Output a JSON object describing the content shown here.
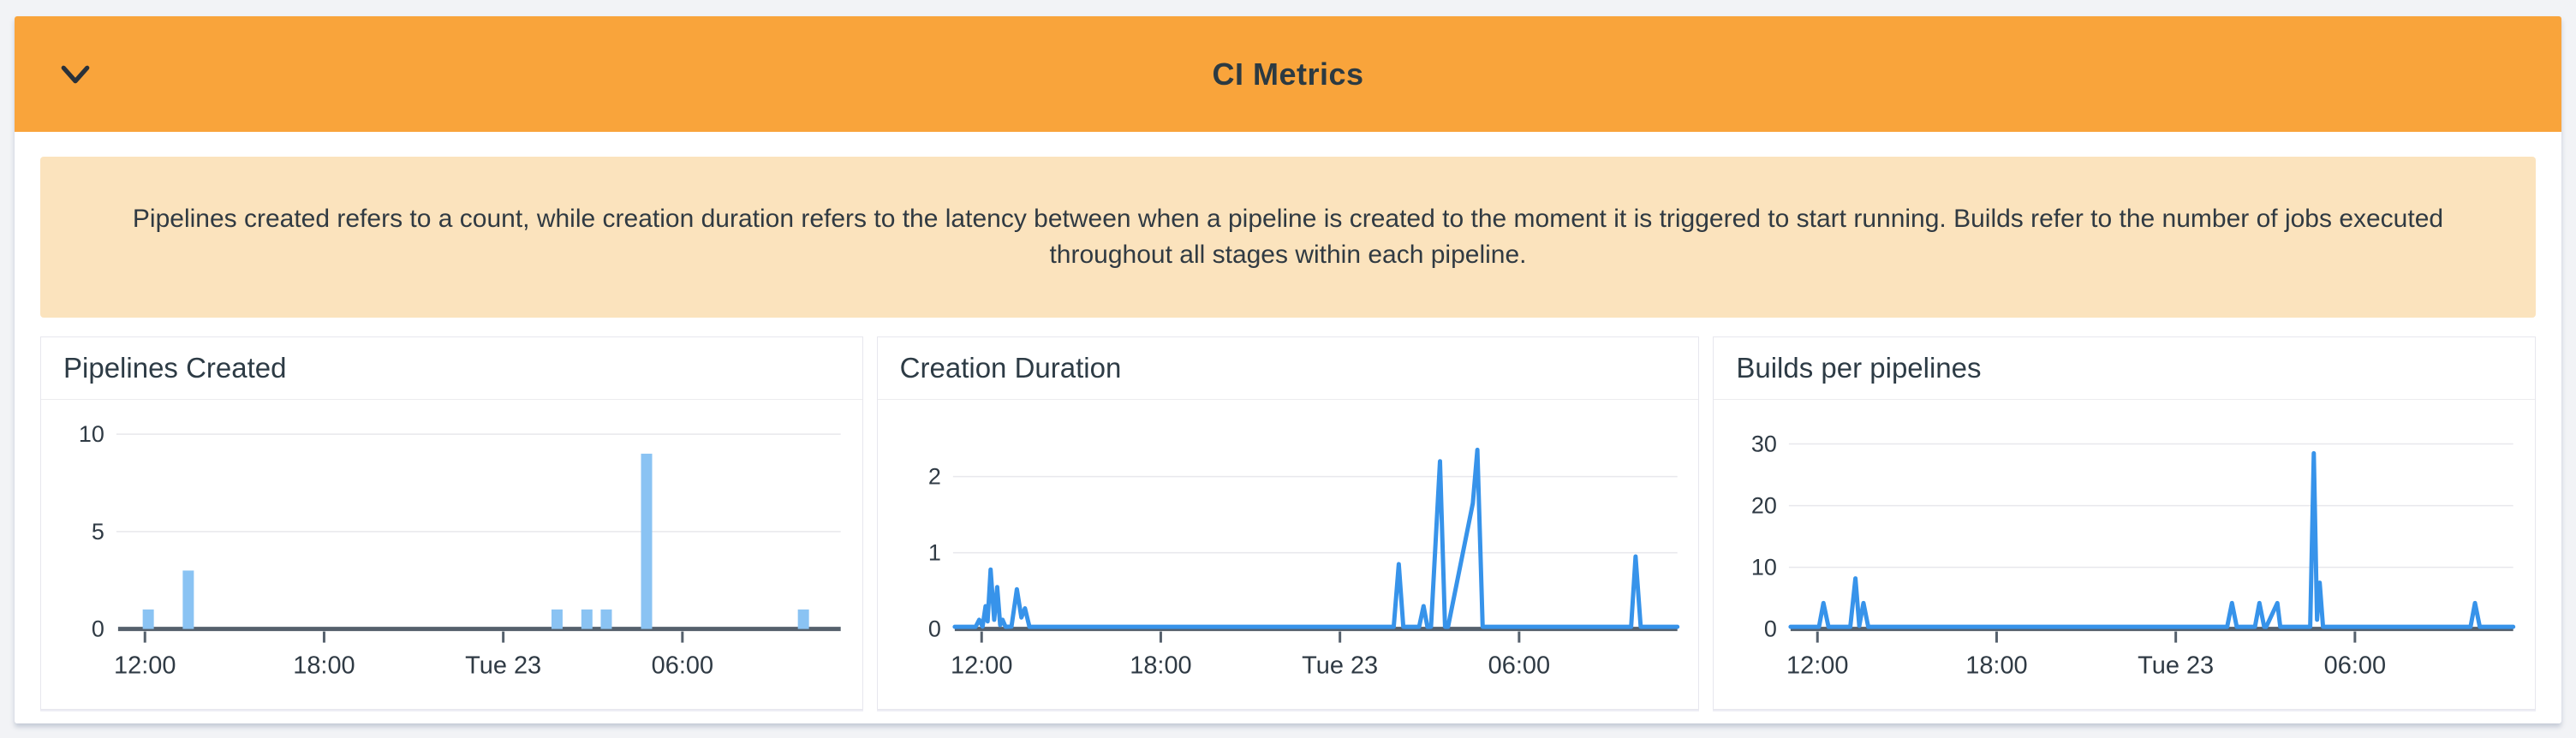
{
  "widget": {
    "title": "CI Metrics",
    "collapse_icon": "chevron-down"
  },
  "banner": {
    "text": "Pipelines created refers to a count, while creation duration refers to the latency between when a pipeline is created to the moment it is triggered to start running. Builds refer to the number of jobs executed throughout all stages within each pipeline."
  },
  "style": {
    "header_bg": "#F9A43B",
    "banner_bg": "#FBE3BD",
    "bar_color": "#8AC3F3",
    "line_color": "#3793EA",
    "axis_color": "#55606C",
    "grid_color": "#E8E8EC",
    "label_color": "#2F3A44",
    "title_color": "#2D3B45"
  },
  "chart_data": [
    {
      "id": "pipelines-created",
      "type": "bar",
      "title": "Pipelines Created",
      "x_unit": "hours relative to Tue 23 00:00",
      "xlim": [
        -12.9,
        11.3
      ],
      "ylim": [
        0,
        10.45
      ],
      "grid": true,
      "x_ticks": [
        {
          "h": -12,
          "label": "12:00"
        },
        {
          "h": -6,
          "label": "18:00"
        },
        {
          "h": 0,
          "label": "Tue 23"
        },
        {
          "h": 6,
          "label": "06:00"
        }
      ],
      "y_ticks": [
        0,
        5,
        10
      ],
      "bar_color": "#8AC3F3",
      "bars": [
        [
          -11.89,
          1
        ],
        [
          -10.55,
          3
        ],
        [
          1.8,
          1
        ],
        [
          2.8,
          1
        ],
        [
          3.45,
          1
        ],
        [
          4.8,
          9
        ],
        [
          10.05,
          1
        ]
      ]
    },
    {
      "id": "creation-duration",
      "type": "line",
      "title": "Creation Duration",
      "x_unit": "hours relative to Tue 23 00:00",
      "xlim": [
        -12.9,
        11.3
      ],
      "ylim": [
        0,
        2.67
      ],
      "grid": true,
      "x_ticks": [
        {
          "h": -12,
          "label": "12:00"
        },
        {
          "h": -6,
          "label": "18:00"
        },
        {
          "h": 0,
          "label": "Tue 23"
        },
        {
          "h": 6,
          "label": "06:00"
        }
      ],
      "y_ticks": [
        0,
        1,
        2
      ],
      "line_color": "#3793EA",
      "points": [
        [
          -12.9,
          0
        ],
        [
          -12.2,
          0
        ],
        [
          -12.08,
          0.12
        ],
        [
          -11.97,
          0.03
        ],
        [
          -11.87,
          0.3
        ],
        [
          -11.8,
          0.1
        ],
        [
          -11.7,
          0.78
        ],
        [
          -11.58,
          0.12
        ],
        [
          -11.48,
          0.55
        ],
        [
          -11.38,
          0.05
        ],
        [
          -11.3,
          0.12
        ],
        [
          -11.2,
          0.01
        ],
        [
          -11.0,
          0.03
        ],
        [
          -10.82,
          0.52
        ],
        [
          -10.67,
          0.15
        ],
        [
          -10.55,
          0.27
        ],
        [
          -10.4,
          0
        ],
        [
          1.8,
          0
        ],
        [
          1.97,
          0.85
        ],
        [
          2.12,
          0
        ],
        [
          2.65,
          0
        ],
        [
          2.8,
          0.3
        ],
        [
          2.93,
          0
        ],
        [
          3.05,
          0
        ],
        [
          3.35,
          2.2
        ],
        [
          3.52,
          0
        ],
        [
          3.62,
          0
        ],
        [
          4.45,
          1.65
        ],
        [
          4.6,
          2.35
        ],
        [
          4.78,
          0
        ],
        [
          9.75,
          0
        ],
        [
          9.9,
          0.95
        ],
        [
          10.07,
          0
        ],
        [
          11.3,
          0
        ]
      ]
    },
    {
      "id": "builds-per-pipelines",
      "type": "line",
      "title": "Builds per pipelines",
      "x_unit": "hours relative to Tue 23 00:00",
      "xlim": [
        -12.9,
        11.3
      ],
      "ylim": [
        0,
        33
      ],
      "grid": true,
      "x_ticks": [
        {
          "h": -12,
          "label": "12:00"
        },
        {
          "h": -6,
          "label": "18:00"
        },
        {
          "h": 0,
          "label": "Tue 23"
        },
        {
          "h": 6,
          "label": "06:00"
        }
      ],
      "y_ticks": [
        0,
        10,
        20,
        30
      ],
      "line_color": "#3793EA",
      "points": [
        [
          -12.9,
          0
        ],
        [
          -11.95,
          0
        ],
        [
          -11.8,
          4.2
        ],
        [
          -11.63,
          0
        ],
        [
          -10.9,
          0
        ],
        [
          -10.73,
          8.2
        ],
        [
          -10.6,
          0.5
        ],
        [
          -10.46,
          4.2
        ],
        [
          -10.3,
          0
        ],
        [
          1.72,
          0
        ],
        [
          1.88,
          4.2
        ],
        [
          2.04,
          0
        ],
        [
          2.65,
          0
        ],
        [
          2.8,
          4.2
        ],
        [
          2.96,
          0
        ],
        [
          3.03,
          0
        ],
        [
          3.4,
          4.2
        ],
        [
          3.5,
          0
        ],
        [
          4.5,
          0
        ],
        [
          4.62,
          28.5
        ],
        [
          4.73,
          1.5
        ],
        [
          4.82,
          7.5
        ],
        [
          4.93,
          0
        ],
        [
          9.87,
          0
        ],
        [
          10.02,
          4.2
        ],
        [
          10.18,
          0
        ],
        [
          11.3,
          0
        ]
      ]
    }
  ]
}
